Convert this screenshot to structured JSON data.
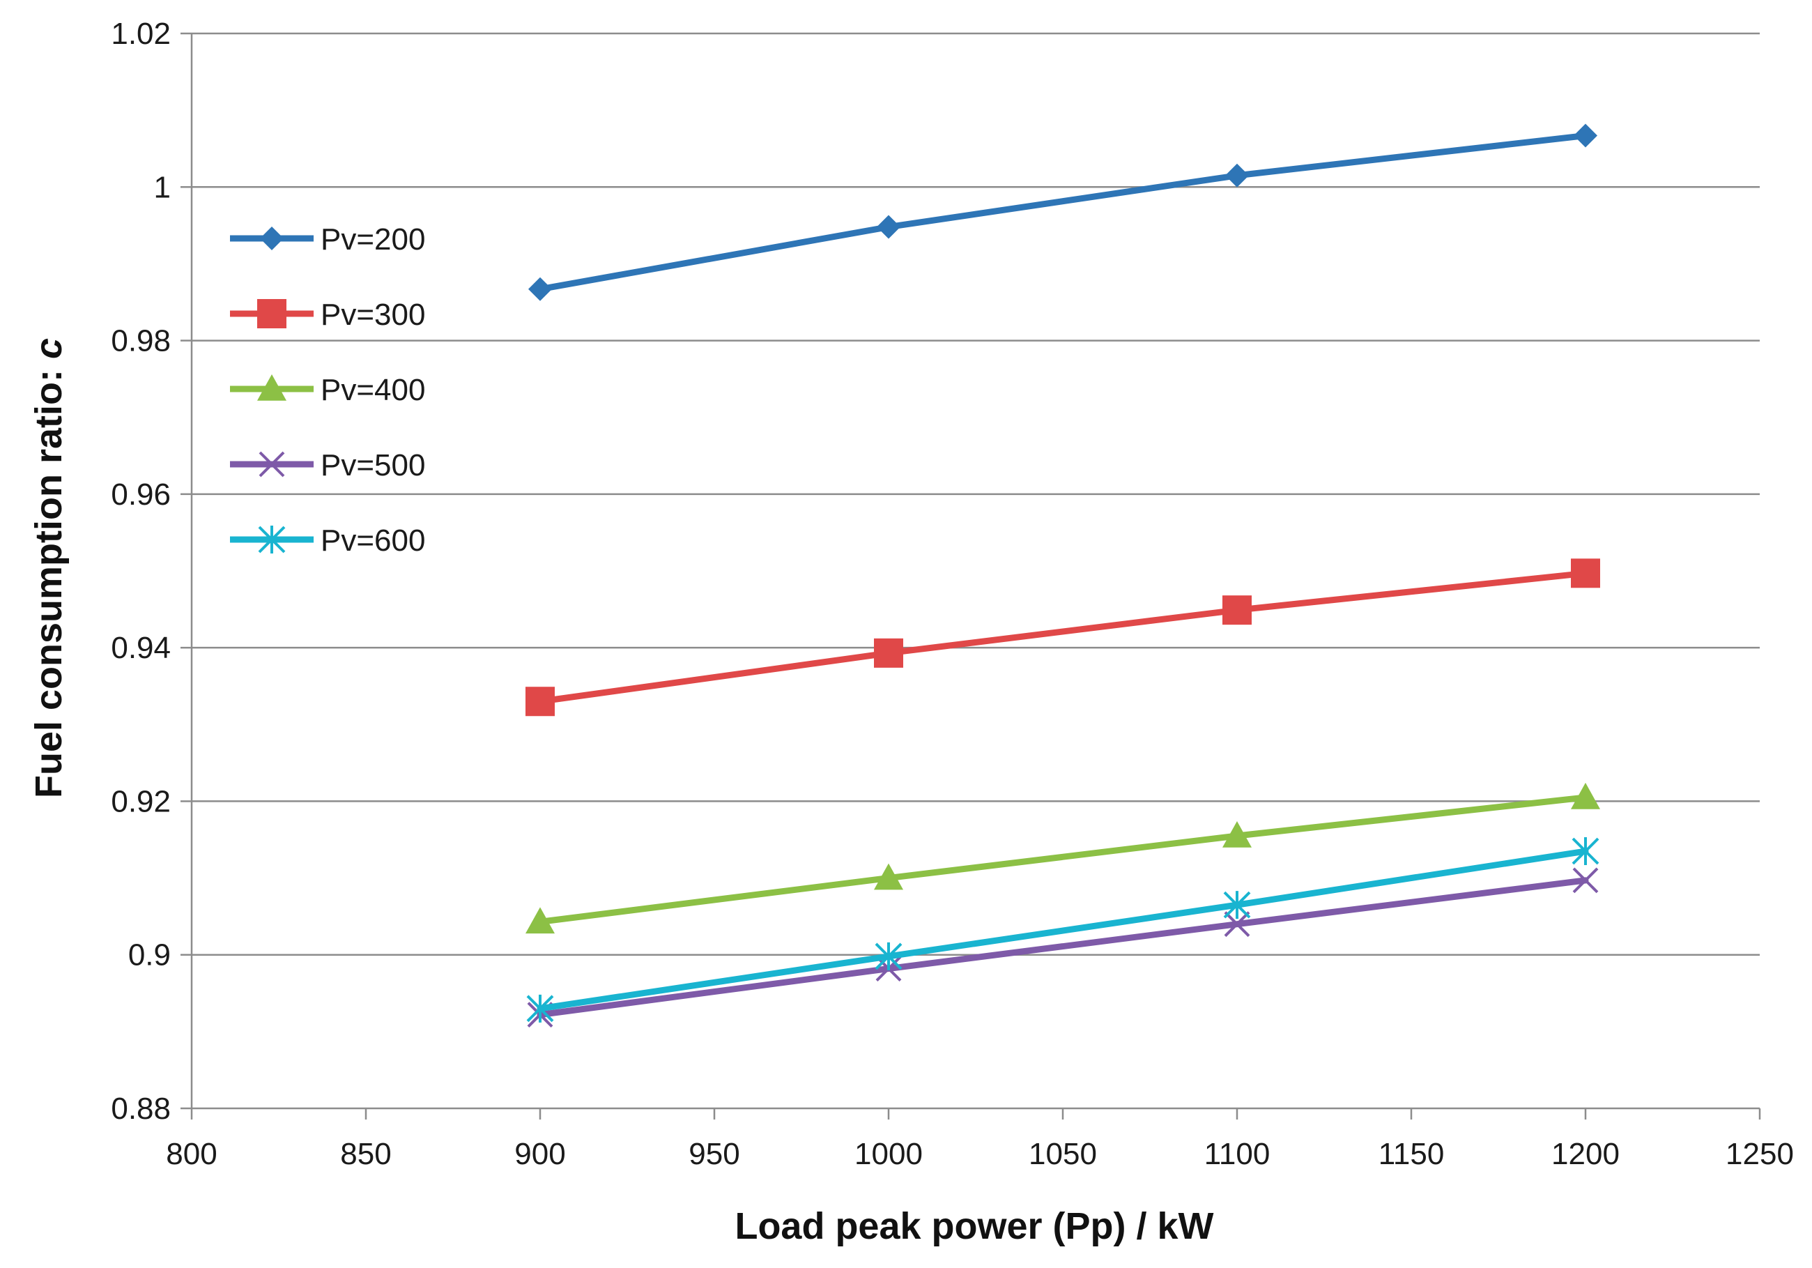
{
  "chart_data": {
    "type": "line",
    "title": "",
    "xlabel": "Load peak power (Pp) / kW",
    "ylabel": "Fuel consumption  ratio: ",
    "ylabel_symbol": "c",
    "xlim": [
      800,
      1250
    ],
    "ylim": [
      0.88,
      1.02
    ],
    "xticks": [
      800,
      850,
      900,
      950,
      1000,
      1050,
      1100,
      1150,
      1200,
      1250
    ],
    "yticks": [
      0.88,
      0.9,
      0.92,
      0.94,
      0.96,
      0.98,
      1,
      1.02
    ],
    "ytick_labels": [
      "0.88",
      "0.9",
      "0.92",
      "0.94",
      "0.96",
      "0.98",
      "1",
      "1.02"
    ],
    "grid": "horizontal",
    "legend_position": "upper-left",
    "x": [
      900,
      1000,
      1100,
      1200
    ],
    "series": [
      {
        "name": "Pv=200",
        "values": [
          0.9867,
          0.9948,
          1.0015,
          1.0067
        ],
        "color": "#2e75b6",
        "marker": "diamond"
      },
      {
        "name": "Pv=300",
        "values": [
          0.933,
          0.9393,
          0.9449,
          0.9497
        ],
        "color": "#e04848",
        "marker": "square"
      },
      {
        "name": "Pv=400",
        "values": [
          0.9043,
          0.91,
          0.9155,
          0.9205
        ],
        "color": "#8cc045",
        "marker": "triangle"
      },
      {
        "name": "Pv=500",
        "values": [
          0.8922,
          0.8982,
          0.904,
          0.9097
        ],
        "color": "#7e5aa8",
        "marker": "x"
      },
      {
        "name": "Pv=600",
        "values": [
          0.893,
          0.8998,
          0.9065,
          0.9135
        ],
        "color": "#19b4d0",
        "marker": "star"
      }
    ]
  }
}
